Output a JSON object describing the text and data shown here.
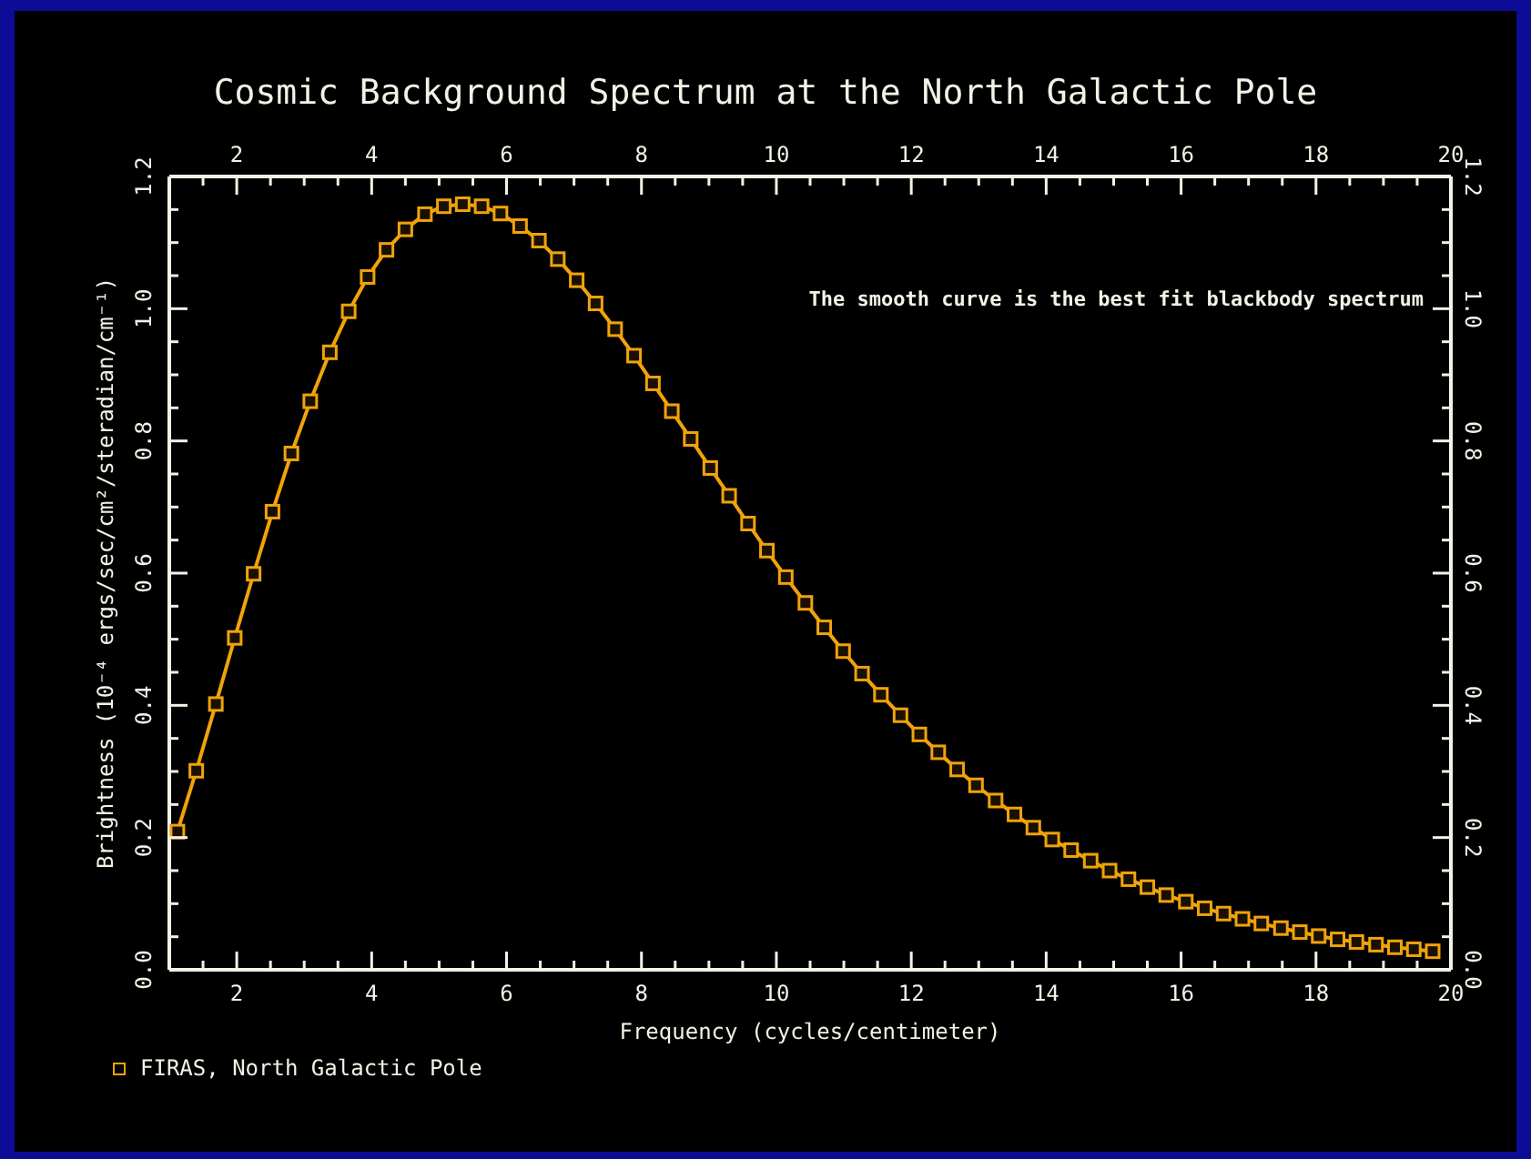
{
  "chart_data": {
    "type": "line",
    "title": "Cosmic Background Spectrum at the North Galactic Pole",
    "xlabel": "Frequency (cycles/centimeter)",
    "ylabel": "Brightness (10⁻⁴ ergs/sec/cm²/steradian/cm⁻¹)",
    "annotations": [
      "The smooth curve is the best fit blackbody spectrum"
    ],
    "x": [
      1.12,
      1.4,
      1.69,
      1.97,
      2.25,
      2.53,
      2.81,
      3.09,
      3.38,
      3.66,
      3.94,
      4.22,
      4.5,
      4.79,
      5.07,
      5.35,
      5.63,
      5.91,
      6.2,
      6.48,
      6.76,
      7.04,
      7.32,
      7.61,
      7.89,
      8.17,
      8.45,
      8.73,
      9.02,
      9.3,
      9.58,
      9.86,
      10.14,
      10.43,
      10.71,
      10.99,
      11.27,
      11.55,
      11.84,
      12.12,
      12.4,
      12.68,
      12.96,
      13.25,
      13.53,
      13.81,
      14.09,
      14.37,
      14.66,
      14.94,
      15.22,
      15.5,
      15.78,
      16.07,
      16.35,
      16.63,
      16.91,
      17.19,
      17.48,
      17.76,
      18.04,
      18.32,
      18.6,
      18.89,
      19.17,
      19.45,
      19.73
    ],
    "series": [
      {
        "name": "FIRAS, North Galactic Pole",
        "color": "#f0a30a",
        "values": [
          0.209,
          0.301,
          0.402,
          0.502,
          0.599,
          0.693,
          0.781,
          0.86,
          0.934,
          0.996,
          1.048,
          1.089,
          1.12,
          1.143,
          1.155,
          1.158,
          1.155,
          1.144,
          1.125,
          1.103,
          1.075,
          1.043,
          1.008,
          0.969,
          0.929,
          0.887,
          0.845,
          0.803,
          0.759,
          0.717,
          0.675,
          0.634,
          0.594,
          0.555,
          0.518,
          0.482,
          0.448,
          0.416,
          0.385,
          0.356,
          0.329,
          0.303,
          0.279,
          0.256,
          0.235,
          0.215,
          0.197,
          0.181,
          0.165,
          0.15,
          0.137,
          0.125,
          0.113,
          0.103,
          0.093,
          0.085,
          0.077,
          0.07,
          0.063,
          0.057,
          0.051,
          0.046,
          0.042,
          0.038,
          0.034,
          0.031,
          0.028
        ]
      }
    ],
    "xlim": [
      1,
      20
    ],
    "xticks": [
      {
        "value": 1.5,
        "label": null
      },
      2,
      {
        "value": 2.5,
        "label": null
      },
      {
        "value": 3,
        "label": null
      },
      {
        "value": 3.5,
        "label": null
      },
      4,
      {
        "value": 4.5,
        "label": null
      },
      {
        "value": 5,
        "label": null
      },
      {
        "value": 5.5,
        "label": null
      },
      6,
      {
        "value": 6.5,
        "label": null
      },
      {
        "value": 7,
        "label": null
      },
      {
        "value": 7.5,
        "label": null
      },
      8,
      {
        "value": 8.5,
        "label": null
      },
      {
        "value": 9,
        "label": null
      },
      {
        "value": 9.5,
        "label": null
      },
      10,
      {
        "value": 10.5,
        "label": null
      },
      {
        "value": 11,
        "label": null
      },
      {
        "value": 11.5,
        "label": null
      },
      12,
      {
        "value": 12.5,
        "label": null
      },
      {
        "value": 13,
        "label": null
      },
      {
        "value": 13.5,
        "label": null
      },
      14,
      {
        "value": 14.5,
        "label": null
      },
      {
        "value": 15,
        "label": null
      },
      {
        "value": 15.5,
        "label": null
      },
      16,
      {
        "value": 16.5,
        "label": null
      },
      {
        "value": 17,
        "label": null
      },
      {
        "value": 17.5,
        "label": null
      },
      18,
      {
        "value": 18.5,
        "label": null
      },
      {
        "value": 19,
        "label": null
      },
      {
        "value": 19.5,
        "label": null
      },
      20
    ],
    "x2lim": [
      1,
      20
    ],
    "x2ticks": [
      {
        "value": 1.5,
        "label": null
      },
      2,
      {
        "value": 2.5,
        "label": null
      },
      {
        "value": 3,
        "label": null
      },
      {
        "value": 3.5,
        "label": null
      },
      4,
      {
        "value": 4.5,
        "label": null
      },
      {
        "value": 5,
        "label": null
      },
      {
        "value": 5.5,
        "label": null
      },
      6,
      {
        "value": 6.5,
        "label": null
      },
      {
        "value": 7,
        "label": null
      },
      {
        "value": 7.5,
        "label": null
      },
      8,
      {
        "value": 8.5,
        "label": null
      },
      {
        "value": 9,
        "label": null
      },
      {
        "value": 9.5,
        "label": null
      },
      10,
      {
        "value": 10.5,
        "label": null
      },
      {
        "value": 11,
        "label": null
      },
      {
        "value": 11.5,
        "label": null
      },
      12,
      {
        "value": 12.5,
        "label": null
      },
      {
        "value": 13,
        "label": null
      },
      {
        "value": 13.5,
        "label": null
      },
      14,
      {
        "value": 14.5,
        "label": null
      },
      {
        "value": 15,
        "label": null
      },
      {
        "value": 15.5,
        "label": null
      },
      16,
      {
        "value": 16.5,
        "label": null
      },
      {
        "value": 17,
        "label": null
      },
      {
        "value": 17.5,
        "label": null
      },
      18,
      {
        "value": 18.5,
        "label": null
      },
      {
        "value": 19,
        "label": null
      },
      {
        "value": 19.5,
        "label": null
      },
      20
    ],
    "ylim": [
      0,
      1.2
    ],
    "yticks": [
      {
        "value": 0,
        "label": "0.0"
      },
      {
        "value": 0.05,
        "label": null
      },
      {
        "value": 0.1,
        "label": null
      },
      {
        "value": 0.15,
        "label": null
      },
      {
        "value": 0.2,
        "label": "0.2"
      },
      {
        "value": 0.25,
        "label": null
      },
      {
        "value": 0.3,
        "label": null
      },
      {
        "value": 0.35,
        "label": null
      },
      {
        "value": 0.4,
        "label": "0.4"
      },
      {
        "value": 0.45,
        "label": null
      },
      {
        "value": 0.5,
        "label": null
      },
      {
        "value": 0.55,
        "label": null
      },
      {
        "value": 0.6,
        "label": "0.6"
      },
      {
        "value": 0.65,
        "label": null
      },
      {
        "value": 0.7,
        "label": null
      },
      {
        "value": 0.75,
        "label": null
      },
      {
        "value": 0.8,
        "label": "0.8"
      },
      {
        "value": 0.85,
        "label": null
      },
      {
        "value": 0.9,
        "label": null
      },
      {
        "value": 0.95,
        "label": null
      },
      {
        "value": 1.0,
        "label": "1.0"
      },
      {
        "value": 1.05,
        "label": null
      },
      {
        "value": 1.1,
        "label": null
      },
      {
        "value": 1.15,
        "label": null
      },
      {
        "value": 1.2,
        "label": "1.2"
      }
    ],
    "y2lim": [
      0,
      1.2
    ],
    "y2ticks": [
      {
        "value": 0,
        "label": "0.0"
      },
      {
        "value": 0.05,
        "label": null
      },
      {
        "value": 0.1,
        "label": null
      },
      {
        "value": 0.15,
        "label": null
      },
      {
        "value": 0.2,
        "label": "0.2"
      },
      {
        "value": 0.25,
        "label": null
      },
      {
        "value": 0.3,
        "label": null
      },
      {
        "value": 0.35,
        "label": null
      },
      {
        "value": 0.4,
        "label": "0.4"
      },
      {
        "value": 0.45,
        "label": null
      },
      {
        "value": 0.5,
        "label": null
      },
      {
        "value": 0.55,
        "label": null
      },
      {
        "value": 0.6,
        "label": "0.6"
      },
      {
        "value": 0.65,
        "label": null
      },
      {
        "value": 0.7,
        "label": null
      },
      {
        "value": 0.75,
        "label": null
      },
      {
        "value": 0.8,
        "label": "0.8"
      },
      {
        "value": 0.85,
        "label": null
      },
      {
        "value": 0.9,
        "label": null
      },
      {
        "value": 0.95,
        "label": null
      },
      {
        "value": 1.0,
        "label": "1.0"
      },
      {
        "value": 1.05,
        "label": null
      },
      {
        "value": 1.1,
        "label": null
      },
      {
        "value": 1.15,
        "label": null
      },
      {
        "value": 1.2,
        "label": "1.2"
      }
    ],
    "grid": false,
    "legend": "bottom left",
    "marker": "square",
    "line_style": "solid"
  }
}
